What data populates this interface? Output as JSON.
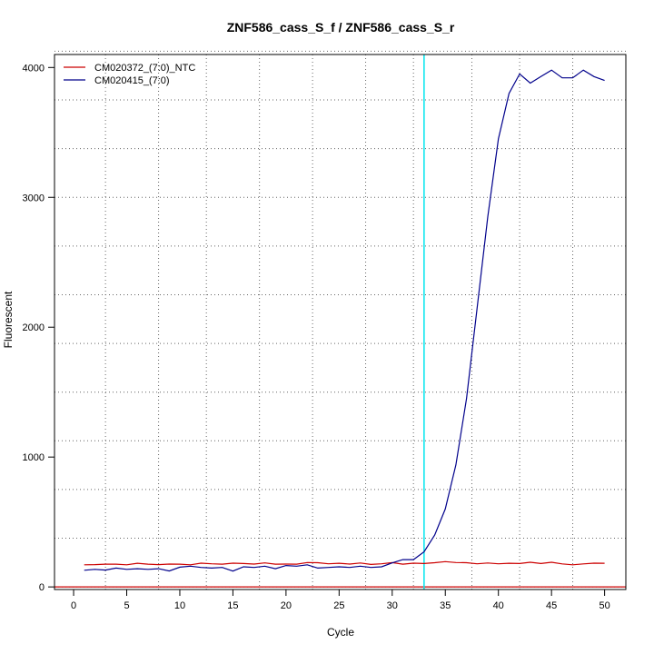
{
  "chart_data": {
    "type": "line",
    "title": "ZNF586_cass_S_f / ZNF586_cass_S_r",
    "xlabel": "Cycle",
    "ylabel": "Fluorescent",
    "xlim": [
      -1.8,
      52
    ],
    "ylim": [
      -20,
      4100
    ],
    "x_ticks": [
      0,
      5,
      10,
      15,
      20,
      25,
      30,
      35,
      40,
      45,
      50
    ],
    "y_ticks": [
      0,
      1000,
      2000,
      3000,
      4000
    ],
    "x_grid": [
      3,
      8,
      12.5,
      17.5,
      22.5,
      27.5,
      32,
      37.5,
      42,
      47
    ],
    "y_grid": [
      0,
      375,
      750,
      1125,
      1500,
      1875,
      2250,
      2625,
      3000,
      3375,
      3750,
      4125
    ],
    "grid": true,
    "legend_position": "top-left",
    "threshold": {
      "cycle": 33,
      "color": "#00e5ee"
    },
    "baseline": {
      "value": 0,
      "color": "#cc0000"
    },
    "x": [
      1,
      2,
      3,
      4,
      5,
      6,
      7,
      8,
      9,
      10,
      11,
      12,
      13,
      14,
      15,
      16,
      17,
      18,
      19,
      20,
      21,
      22,
      23,
      24,
      25,
      26,
      27,
      28,
      29,
      30,
      31,
      32,
      33,
      34,
      35,
      36,
      37,
      38,
      39,
      40,
      41,
      42,
      43,
      44,
      45,
      46,
      47,
      48,
      49,
      50
    ],
    "series": [
      {
        "name": "CM020372_(7:0)_NTC",
        "color": "#cc0000",
        "values": [
          170,
          172,
          175,
          175,
          170,
          182,
          175,
          172,
          176,
          175,
          170,
          183,
          178,
          175,
          183,
          180,
          176,
          185,
          175,
          176,
          175,
          188,
          186,
          178,
          182,
          176,
          184,
          173,
          178,
          187,
          175,
          183,
          180,
          186,
          195,
          188,
          186,
          178,
          184,
          178,
          182,
          180,
          190,
          180,
          190,
          177,
          170,
          177,
          183,
          182
        ]
      },
      {
        "name": "CM020415_(7:0)",
        "color": "#00008b",
        "values": [
          128,
          135,
          130,
          145,
          135,
          140,
          135,
          140,
          123,
          152,
          160,
          150,
          145,
          150,
          122,
          155,
          150,
          160,
          140,
          165,
          160,
          170,
          145,
          150,
          155,
          150,
          160,
          150,
          155,
          185,
          210,
          210,
          270,
          400,
          600,
          940,
          1450,
          2150,
          2850,
          3450,
          3800,
          3950,
          3880,
          3930,
          3980,
          3920,
          3920,
          3980,
          3930,
          3900
        ]
      }
    ]
  }
}
